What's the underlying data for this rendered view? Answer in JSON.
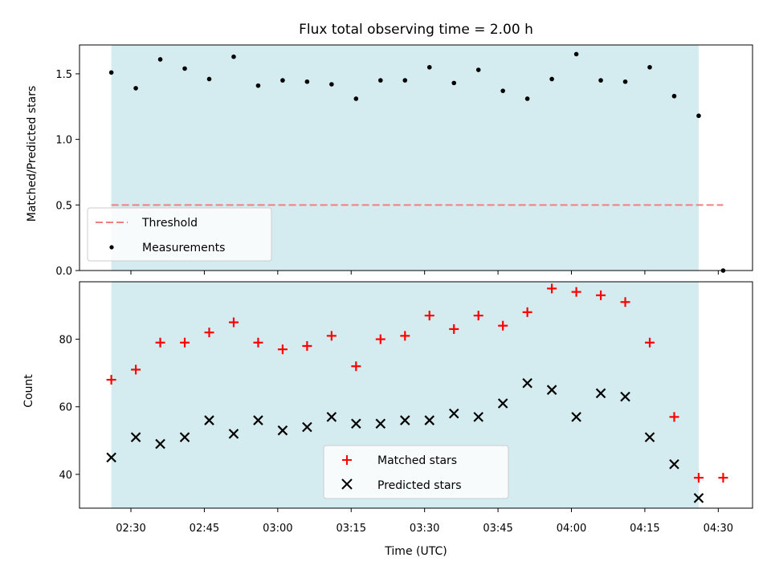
{
  "chart_data": [
    {
      "type": "scatter",
      "title": "Flux total observing time = 2.00 h",
      "xlabel": "",
      "ylabel": "Matched/Predicted stars",
      "ylim": [
        0,
        1.72
      ],
      "yticks": [
        "0.0",
        "0.5",
        "1.0",
        "1.5"
      ],
      "yticks_values": [
        0,
        0.5,
        1.0,
        1.5
      ],
      "shaded_region": [
        "02:26",
        "04:26"
      ],
      "threshold": {
        "name": "Threshold",
        "value": 0.5,
        "color": "#f08080",
        "x_range": [
          "02:26",
          "04:31"
        ]
      },
      "series": [
        {
          "name": "Measurements",
          "color": "#000000",
          "marker": "dot",
          "x": [
            "02:26",
            "02:31",
            "02:36",
            "02:41",
            "02:46",
            "02:51",
            "02:56",
            "03:01",
            "03:06",
            "03:11",
            "03:16",
            "03:21",
            "03:26",
            "03:31",
            "03:36",
            "03:41",
            "03:46",
            "03:51",
            "03:56",
            "04:01",
            "04:06",
            "04:11",
            "04:16",
            "04:21",
            "04:26",
            "04:31"
          ],
          "values": [
            1.51,
            1.39,
            1.61,
            1.54,
            1.46,
            1.63,
            1.41,
            1.45,
            1.44,
            1.42,
            1.31,
            1.45,
            1.45,
            1.55,
            1.43,
            1.53,
            1.37,
            1.31,
            1.46,
            1.65,
            1.45,
            1.44,
            1.55,
            1.33,
            1.18,
            0.0
          ]
        }
      ],
      "legend": "lower-left"
    },
    {
      "type": "scatter",
      "title": "",
      "xlabel": "Time (UTC)",
      "ylabel": "Count",
      "ylim": [
        30,
        97
      ],
      "yticks": [
        "40",
        "60",
        "80"
      ],
      "yticks_values": [
        40,
        60,
        80
      ],
      "xlim": [
        "02:19.5",
        "04:37"
      ],
      "xticks": [
        "02:30",
        "02:45",
        "03:00",
        "03:15",
        "03:30",
        "03:45",
        "04:00",
        "04:15",
        "04:30"
      ],
      "shaded_region": [
        "02:26",
        "04:26"
      ],
      "series": [
        {
          "name": "Matched stars",
          "color": "#ff0000",
          "marker": "plus",
          "x": [
            "02:26",
            "02:31",
            "02:36",
            "02:41",
            "02:46",
            "02:51",
            "02:56",
            "03:01",
            "03:06",
            "03:11",
            "03:16",
            "03:21",
            "03:26",
            "03:31",
            "03:36",
            "03:41",
            "03:46",
            "03:51",
            "03:56",
            "04:01",
            "04:06",
            "04:11",
            "04:16",
            "04:21",
            "04:26",
            "04:31"
          ],
          "values": [
            68,
            71,
            79,
            79,
            82,
            85,
            79,
            77,
            78,
            81,
            72,
            80,
            81,
            87,
            83,
            87,
            84,
            88,
            95,
            94,
            93,
            91,
            79,
            57,
            39,
            39
          ]
        },
        {
          "name": "Predicted stars",
          "color": "#000000",
          "marker": "x",
          "x": [
            "02:26",
            "02:31",
            "02:36",
            "02:41",
            "02:46",
            "02:51",
            "02:56",
            "03:01",
            "03:06",
            "03:11",
            "03:16",
            "03:21",
            "03:26",
            "03:31",
            "03:36",
            "03:41",
            "03:46",
            "03:51",
            "03:56",
            "04:01",
            "04:06",
            "04:11",
            "04:16",
            "04:21",
            "04:26"
          ],
          "values": [
            45,
            51,
            49,
            51,
            56,
            52,
            56,
            53,
            54,
            57,
            55,
            55,
            56,
            56,
            58,
            57,
            61,
            67,
            65,
            57,
            64,
            63,
            51,
            43,
            33
          ]
        }
      ],
      "legend": "lower-center"
    }
  ],
  "colors": {
    "shade": "#d4ebf0"
  }
}
